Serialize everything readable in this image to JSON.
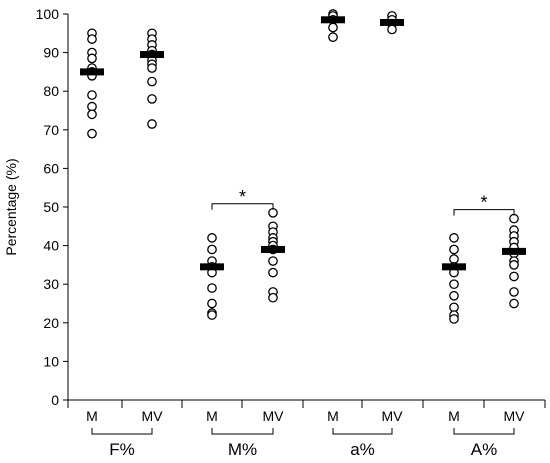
{
  "chart_data": {
    "type": "scatter",
    "ylabel": "Percentage (%)",
    "ylim": [
      0,
      100
    ],
    "yticks": [
      0,
      10,
      20,
      30,
      40,
      50,
      60,
      70,
      80,
      90,
      100
    ],
    "grid": false,
    "groups": [
      {
        "label": "F%",
        "conditions": [
          {
            "label": "M",
            "mean": 85,
            "points": [
              95,
              93.5,
              90,
              88.5,
              86,
              85,
              84,
              79,
              76,
              74,
              69
            ]
          },
          {
            "label": "MV",
            "mean": 89.5,
            "points": [
              95,
              93.5,
              92,
              90.5,
              89.5,
              88,
              87,
              86,
              82.5,
              78,
              71.5
            ]
          }
        ]
      },
      {
        "label": "M%",
        "conditions": [
          {
            "label": "M",
            "mean": 34.5,
            "points": [
              42,
              39,
              36,
              34.5,
              33,
              29,
              25,
              22.5,
              22
            ]
          },
          {
            "label": "MV",
            "mean": 39,
            "points": [
              48.5,
              45,
              43.5,
              42,
              41,
              40,
              39,
              36,
              33,
              28,
              26.5
            ]
          }
        ],
        "significance": "*"
      },
      {
        "label": "a%",
        "conditions": [
          {
            "label": "M",
            "mean": 98.5,
            "points": [
              100,
              99.5,
              98.5,
              96.5,
              94
            ]
          },
          {
            "label": "MV",
            "mean": 97.8,
            "points": [
              99.5,
              98.5,
              97.5,
              96
            ]
          }
        ]
      },
      {
        "label": "A%",
        "conditions": [
          {
            "label": "M",
            "mean": 34.5,
            "points": [
              42,
              39,
              36.5,
              34.5,
              33,
              30,
              27,
              24,
              22,
              21
            ]
          },
          {
            "label": "MV",
            "mean": 38.5,
            "points": [
              47,
              44,
              42.5,
              41,
              39.5,
              38,
              36,
              35,
              32,
              28,
              25
            ]
          }
        ],
        "significance": "*"
      }
    ]
  }
}
